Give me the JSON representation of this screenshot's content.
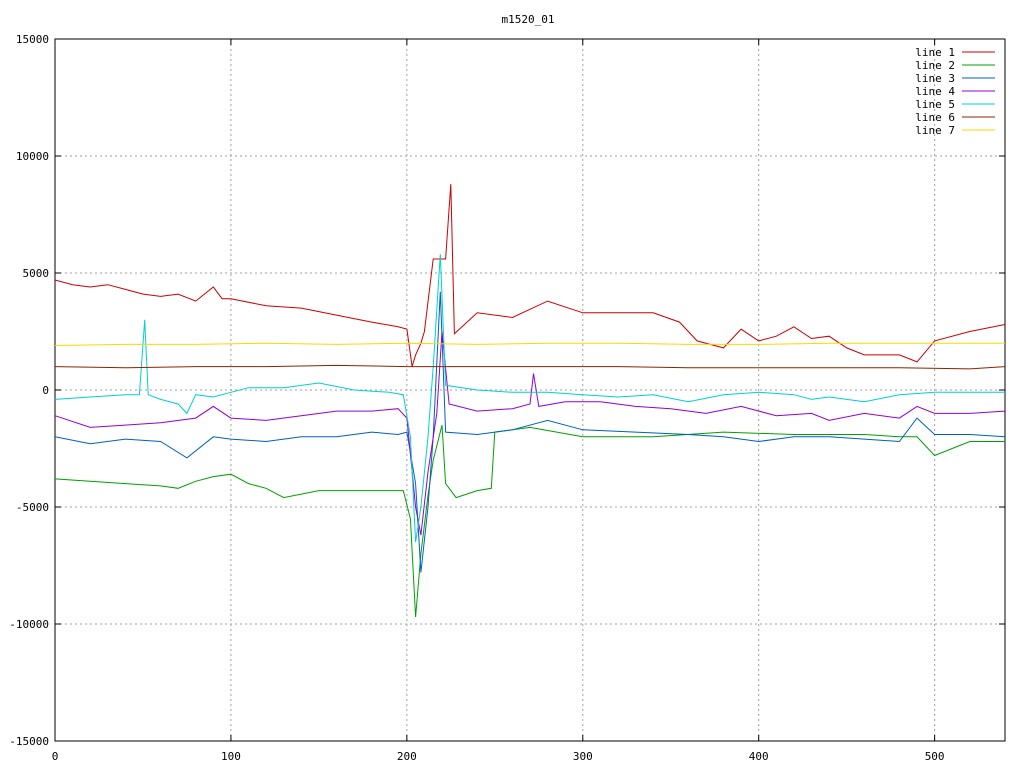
{
  "chart_data": {
    "type": "line",
    "title": "m1520_01",
    "xlabel": "",
    "ylabel": "",
    "xlim": [
      0,
      540
    ],
    "ylim": [
      -15000,
      15000
    ],
    "x_ticks": [
      0,
      100,
      200,
      300,
      400,
      500
    ],
    "y_ticks": [
      -15000,
      -10000,
      -5000,
      0,
      5000,
      10000,
      15000
    ],
    "grid": true,
    "legend_position": "top-right",
    "series": [
      {
        "name": "line 1",
        "color": "#cc0000",
        "points": [
          [
            0,
            4700
          ],
          [
            10,
            4500
          ],
          [
            20,
            4400
          ],
          [
            30,
            4500
          ],
          [
            40,
            4300
          ],
          [
            50,
            4100
          ],
          [
            60,
            4000
          ],
          [
            70,
            4100
          ],
          [
            80,
            3800
          ],
          [
            90,
            4400
          ],
          [
            95,
            3900
          ],
          [
            100,
            3900
          ],
          [
            120,
            3600
          ],
          [
            140,
            3500
          ],
          [
            160,
            3200
          ],
          [
            180,
            2900
          ],
          [
            195,
            2700
          ],
          [
            200,
            2600
          ],
          [
            203,
            1000
          ],
          [
            205,
            1500
          ],
          [
            208,
            2000
          ],
          [
            210,
            2500
          ],
          [
            215,
            5600
          ],
          [
            222,
            5600
          ],
          [
            225,
            8800
          ],
          [
            227,
            2400
          ],
          [
            240,
            3300
          ],
          [
            260,
            3100
          ],
          [
            280,
            3800
          ],
          [
            300,
            3300
          ],
          [
            320,
            3300
          ],
          [
            340,
            3300
          ],
          [
            355,
            2900
          ],
          [
            365,
            2100
          ],
          [
            380,
            1800
          ],
          [
            390,
            2600
          ],
          [
            400,
            2100
          ],
          [
            410,
            2300
          ],
          [
            420,
            2700
          ],
          [
            430,
            2200
          ],
          [
            440,
            2300
          ],
          [
            450,
            1800
          ],
          [
            460,
            1500
          ],
          [
            470,
            1500
          ],
          [
            480,
            1500
          ],
          [
            490,
            1200
          ],
          [
            500,
            2100
          ],
          [
            520,
            2500
          ],
          [
            540,
            2800
          ]
        ]
      },
      {
        "name": "line 2",
        "color": "#00a000",
        "points": [
          [
            0,
            -3800
          ],
          [
            20,
            -3900
          ],
          [
            40,
            -4000
          ],
          [
            60,
            -4100
          ],
          [
            70,
            -4200
          ],
          [
            80,
            -3900
          ],
          [
            90,
            -3700
          ],
          [
            100,
            -3600
          ],
          [
            110,
            -4000
          ],
          [
            120,
            -4200
          ],
          [
            130,
            -4600
          ],
          [
            150,
            -4300
          ],
          [
            180,
            -4300
          ],
          [
            198,
            -4300
          ],
          [
            202,
            -5500
          ],
          [
            205,
            -9700
          ],
          [
            208,
            -7000
          ],
          [
            212,
            -4500
          ],
          [
            215,
            -3000
          ],
          [
            220,
            -1500
          ],
          [
            222,
            -4000
          ],
          [
            228,
            -4600
          ],
          [
            240,
            -4300
          ],
          [
            248,
            -4200
          ],
          [
            250,
            -1800
          ],
          [
            270,
            -1600
          ],
          [
            300,
            -2000
          ],
          [
            340,
            -2000
          ],
          [
            380,
            -1800
          ],
          [
            420,
            -1900
          ],
          [
            460,
            -1900
          ],
          [
            480,
            -2000
          ],
          [
            490,
            -2000
          ],
          [
            500,
            -2800
          ],
          [
            520,
            -2200
          ],
          [
            540,
            -2200
          ]
        ]
      },
      {
        "name": "line 3",
        "color": "#0060c0",
        "points": [
          [
            0,
            -2000
          ],
          [
            20,
            -2300
          ],
          [
            40,
            -2100
          ],
          [
            60,
            -2200
          ],
          [
            75,
            -2900
          ],
          [
            90,
            -2000
          ],
          [
            100,
            -2100
          ],
          [
            120,
            -2200
          ],
          [
            140,
            -2000
          ],
          [
            160,
            -2000
          ],
          [
            180,
            -1800
          ],
          [
            195,
            -1900
          ],
          [
            200,
            -1800
          ],
          [
            205,
            -4000
          ],
          [
            208,
            -7800
          ],
          [
            212,
            -5000
          ],
          [
            215,
            -2000
          ],
          [
            219,
            4200
          ],
          [
            222,
            -1800
          ],
          [
            240,
            -1900
          ],
          [
            260,
            -1700
          ],
          [
            280,
            -1300
          ],
          [
            300,
            -1700
          ],
          [
            330,
            -1800
          ],
          [
            360,
            -1900
          ],
          [
            380,
            -2000
          ],
          [
            400,
            -2200
          ],
          [
            420,
            -2000
          ],
          [
            440,
            -2000
          ],
          [
            460,
            -2100
          ],
          [
            480,
            -2200
          ],
          [
            490,
            -1200
          ],
          [
            500,
            -1900
          ],
          [
            520,
            -1900
          ],
          [
            540,
            -2000
          ]
        ]
      },
      {
        "name": "line 4",
        "color": "#9400d3",
        "points": [
          [
            0,
            -1100
          ],
          [
            20,
            -1600
          ],
          [
            40,
            -1500
          ],
          [
            60,
            -1400
          ],
          [
            80,
            -1200
          ],
          [
            90,
            -700
          ],
          [
            100,
            -1200
          ],
          [
            120,
            -1300
          ],
          [
            140,
            -1100
          ],
          [
            160,
            -900
          ],
          [
            180,
            -900
          ],
          [
            195,
            -800
          ],
          [
            200,
            -1200
          ],
          [
            205,
            -5000
          ],
          [
            208,
            -6200
          ],
          [
            212,
            -3500
          ],
          [
            217,
            -1000
          ],
          [
            220,
            2500
          ],
          [
            224,
            -600
          ],
          [
            240,
            -900
          ],
          [
            260,
            -800
          ],
          [
            270,
            -600
          ],
          [
            272,
            700
          ],
          [
            275,
            -700
          ],
          [
            290,
            -500
          ],
          [
            310,
            -500
          ],
          [
            330,
            -700
          ],
          [
            350,
            -800
          ],
          [
            370,
            -1000
          ],
          [
            390,
            -700
          ],
          [
            410,
            -1100
          ],
          [
            430,
            -1000
          ],
          [
            440,
            -1300
          ],
          [
            460,
            -1000
          ],
          [
            480,
            -1200
          ],
          [
            490,
            -700
          ],
          [
            500,
            -1000
          ],
          [
            520,
            -1000
          ],
          [
            540,
            -900
          ]
        ]
      },
      {
        "name": "line 5",
        "color": "#00d0d0",
        "points": [
          [
            0,
            -400
          ],
          [
            20,
            -300
          ],
          [
            40,
            -200
          ],
          [
            48,
            -200
          ],
          [
            51,
            3000
          ],
          [
            53,
            -200
          ],
          [
            60,
            -400
          ],
          [
            70,
            -600
          ],
          [
            75,
            -1000
          ],
          [
            80,
            -200
          ],
          [
            90,
            -300
          ],
          [
            100,
            -100
          ],
          [
            110,
            100
          ],
          [
            130,
            100
          ],
          [
            150,
            300
          ],
          [
            170,
            0
          ],
          [
            190,
            -100
          ],
          [
            198,
            -200
          ],
          [
            202,
            -2000
          ],
          [
            205,
            -6500
          ],
          [
            208,
            -5000
          ],
          [
            212,
            -2000
          ],
          [
            215,
            1000
          ],
          [
            219,
            5800
          ],
          [
            222,
            200
          ],
          [
            240,
            0
          ],
          [
            260,
            -100
          ],
          [
            280,
            -100
          ],
          [
            300,
            -200
          ],
          [
            320,
            -300
          ],
          [
            340,
            -200
          ],
          [
            360,
            -500
          ],
          [
            380,
            -200
          ],
          [
            400,
            -100
          ],
          [
            420,
            -200
          ],
          [
            430,
            -400
          ],
          [
            440,
            -300
          ],
          [
            460,
            -500
          ],
          [
            480,
            -200
          ],
          [
            500,
            -100
          ],
          [
            520,
            -100
          ],
          [
            540,
            -100
          ]
        ]
      },
      {
        "name": "line 6",
        "color": "#8b2500",
        "points": [
          [
            0,
            1000
          ],
          [
            40,
            950
          ],
          [
            80,
            1000
          ],
          [
            120,
            1000
          ],
          [
            160,
            1050
          ],
          [
            200,
            1000
          ],
          [
            240,
            1000
          ],
          [
            280,
            1000
          ],
          [
            320,
            1000
          ],
          [
            360,
            950
          ],
          [
            400,
            950
          ],
          [
            440,
            950
          ],
          [
            480,
            950
          ],
          [
            520,
            900
          ],
          [
            540,
            1000
          ]
        ]
      },
      {
        "name": "line 7",
        "color": "#ffd700",
        "points": [
          [
            0,
            1900
          ],
          [
            40,
            1950
          ],
          [
            80,
            1950
          ],
          [
            120,
            2000
          ],
          [
            160,
            1950
          ],
          [
            200,
            2000
          ],
          [
            240,
            1950
          ],
          [
            280,
            2000
          ],
          [
            320,
            2000
          ],
          [
            360,
            1950
          ],
          [
            400,
            1950
          ],
          [
            440,
            2000
          ],
          [
            480,
            2000
          ],
          [
            520,
            2000
          ],
          [
            540,
            2000
          ]
        ]
      }
    ]
  }
}
